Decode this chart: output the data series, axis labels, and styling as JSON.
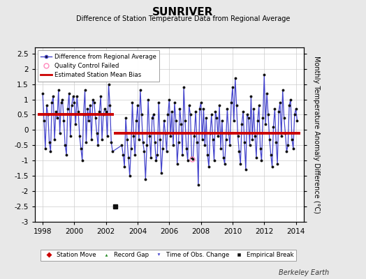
{
  "title": "SUNRIVER",
  "subtitle": "Difference of Station Temperature Data from Regional Average",
  "ylabel_right": "Monthly Temperature Anomaly Difference (°C)",
  "xlim": [
    1997.5,
    2014.5
  ],
  "ylim": [
    -3.0,
    2.7
  ],
  "yticks": [
    -3,
    -2.5,
    -2,
    -1.5,
    -1,
    -0.5,
    0,
    0.5,
    1,
    1.5,
    2,
    2.5
  ],
  "xticks": [
    1998,
    2000,
    2002,
    2004,
    2006,
    2008,
    2010,
    2012,
    2014
  ],
  "background_color": "#e8e8e8",
  "plot_bg_color": "#ffffff",
  "grid_color": "#cccccc",
  "line_color": "#4444cc",
  "bias_segment1": [
    1997.7,
    2002.5,
    0.52
  ],
  "bias_segment2": [
    2002.5,
    2014.3,
    -0.1
  ],
  "empirical_break_x": 2002.58,
  "empirical_break_y": -2.5,
  "qc_fail_x": 2007.42,
  "qc_fail_y": -0.95,
  "footer_text": "Berkeley Earth",
  "data_x": [
    1998.0,
    1998.083,
    1998.167,
    1998.25,
    1998.333,
    1998.417,
    1998.5,
    1998.583,
    1998.667,
    1998.75,
    1998.833,
    1998.917,
    1999.0,
    1999.083,
    1999.167,
    1999.25,
    1999.333,
    1999.417,
    1999.5,
    1999.583,
    1999.667,
    1999.75,
    1999.833,
    1999.917,
    2000.0,
    2000.083,
    2000.167,
    2000.25,
    2000.333,
    2000.417,
    2000.5,
    2000.583,
    2000.667,
    2000.75,
    2000.833,
    2000.917,
    2001.0,
    2001.083,
    2001.167,
    2001.25,
    2001.333,
    2001.417,
    2001.5,
    2001.583,
    2001.667,
    2001.75,
    2001.833,
    2001.917,
    2002.0,
    2002.083,
    2002.167,
    2002.25,
    2002.333,
    2002.417,
    2003.0,
    2003.083,
    2003.167,
    2003.25,
    2003.333,
    2003.417,
    2003.5,
    2003.583,
    2003.667,
    2003.75,
    2003.833,
    2003.917,
    2004.0,
    2004.083,
    2004.167,
    2004.25,
    2004.333,
    2004.417,
    2004.5,
    2004.583,
    2004.667,
    2004.75,
    2004.833,
    2004.917,
    2005.0,
    2005.083,
    2005.167,
    2005.25,
    2005.333,
    2005.417,
    2005.5,
    2005.583,
    2005.667,
    2005.75,
    2005.833,
    2005.917,
    2006.0,
    2006.083,
    2006.167,
    2006.25,
    2006.333,
    2006.417,
    2006.5,
    2006.583,
    2006.667,
    2006.75,
    2006.833,
    2006.917,
    2007.0,
    2007.083,
    2007.167,
    2007.25,
    2007.333,
    2007.417,
    2007.5,
    2007.583,
    2007.667,
    2007.75,
    2007.833,
    2007.917,
    2008.0,
    2008.083,
    2008.167,
    2008.25,
    2008.333,
    2008.417,
    2008.5,
    2008.583,
    2008.667,
    2008.75,
    2008.833,
    2008.917,
    2009.0,
    2009.083,
    2009.167,
    2009.25,
    2009.333,
    2009.417,
    2009.5,
    2009.583,
    2009.667,
    2009.75,
    2009.833,
    2009.917,
    2010.0,
    2010.083,
    2010.167,
    2010.25,
    2010.333,
    2010.417,
    2010.5,
    2010.583,
    2010.667,
    2010.75,
    2010.833,
    2010.917,
    2011.0,
    2011.083,
    2011.167,
    2011.25,
    2011.333,
    2011.417,
    2011.5,
    2011.583,
    2011.667,
    2011.75,
    2011.833,
    2011.917,
    2012.0,
    2012.083,
    2012.167,
    2012.25,
    2012.333,
    2012.417,
    2012.5,
    2012.583,
    2012.667,
    2012.75,
    2012.833,
    2012.917,
    2013.0,
    2013.083,
    2013.167,
    2013.25,
    2013.333,
    2013.417,
    2013.5,
    2013.583,
    2013.667,
    2013.75,
    2013.833,
    2013.917,
    2014.0,
    2014.083
  ],
  "data_y": [
    1.2,
    0.3,
    -0.6,
    0.8,
    0.5,
    -0.4,
    -0.7,
    0.9,
    1.1,
    -0.3,
    0.6,
    0.4,
    1.3,
    -0.1,
    0.9,
    1.0,
    0.3,
    -0.5,
    -0.8,
    0.7,
    1.2,
    -0.2,
    0.8,
    1.1,
    0.9,
    0.2,
    1.1,
    0.6,
    -0.2,
    -0.6,
    -1.0,
    0.5,
    1.3,
    -0.4,
    0.7,
    0.3,
    0.8,
    -0.3,
    1.0,
    0.9,
    0.4,
    -0.1,
    -0.5,
    0.6,
    1.1,
    -0.3,
    0.5,
    0.7,
    0.6,
    -0.2,
    1.5,
    0.8,
    -0.4,
    -0.7,
    -0.5,
    -0.8,
    -1.2,
    0.4,
    -0.3,
    -0.9,
    -1.5,
    -0.6,
    0.9,
    -0.2,
    -0.8,
    0.3,
    0.8,
    -0.3,
    1.3,
    0.5,
    -0.4,
    -0.7,
    -1.6,
    -0.5,
    1.0,
    -0.2,
    -0.9,
    0.4,
    0.5,
    -0.4,
    -1.0,
    -0.8,
    0.9,
    -0.3,
    -1.4,
    -0.6,
    0.3,
    -0.1,
    -0.7,
    0.5,
    1.0,
    -0.2,
    0.6,
    -0.5,
    0.9,
    0.3,
    -1.1,
    -0.4,
    0.7,
    0.2,
    -0.8,
    1.4,
    0.3,
    -0.6,
    -1.0,
    0.8,
    0.5,
    -0.9,
    -0.95,
    -0.2,
    0.6,
    -0.4,
    -1.8,
    0.7,
    0.9,
    -0.3,
    0.7,
    -0.5,
    0.4,
    -0.8,
    -1.2,
    -0.1,
    0.5,
    -0.3,
    -1.0,
    0.6,
    0.4,
    -0.2,
    0.8,
    -0.6,
    0.3,
    -0.9,
    -1.1,
    -0.3,
    0.7,
    -0.1,
    -0.5,
    0.9,
    1.4,
    0.3,
    1.7,
    0.8,
    -0.2,
    -0.7,
    -1.1,
    0.2,
    0.6,
    -0.4,
    -1.3,
    0.5,
    0.4,
    -0.5,
    1.1,
    -0.3,
    0.7,
    -0.2,
    -0.9,
    0.3,
    0.8,
    -0.6,
    -1.0,
    0.4,
    1.8,
    0.2,
    1.2,
    0.5,
    -0.3,
    -0.8,
    -1.2,
    0.1,
    0.7,
    -0.4,
    -1.1,
    0.6,
    0.9,
    -0.2,
    1.3,
    0.4,
    -0.1,
    -0.7,
    -0.5,
    0.8,
    1.0,
    -0.3,
    -0.6,
    0.5,
    0.7,
    0.3
  ]
}
